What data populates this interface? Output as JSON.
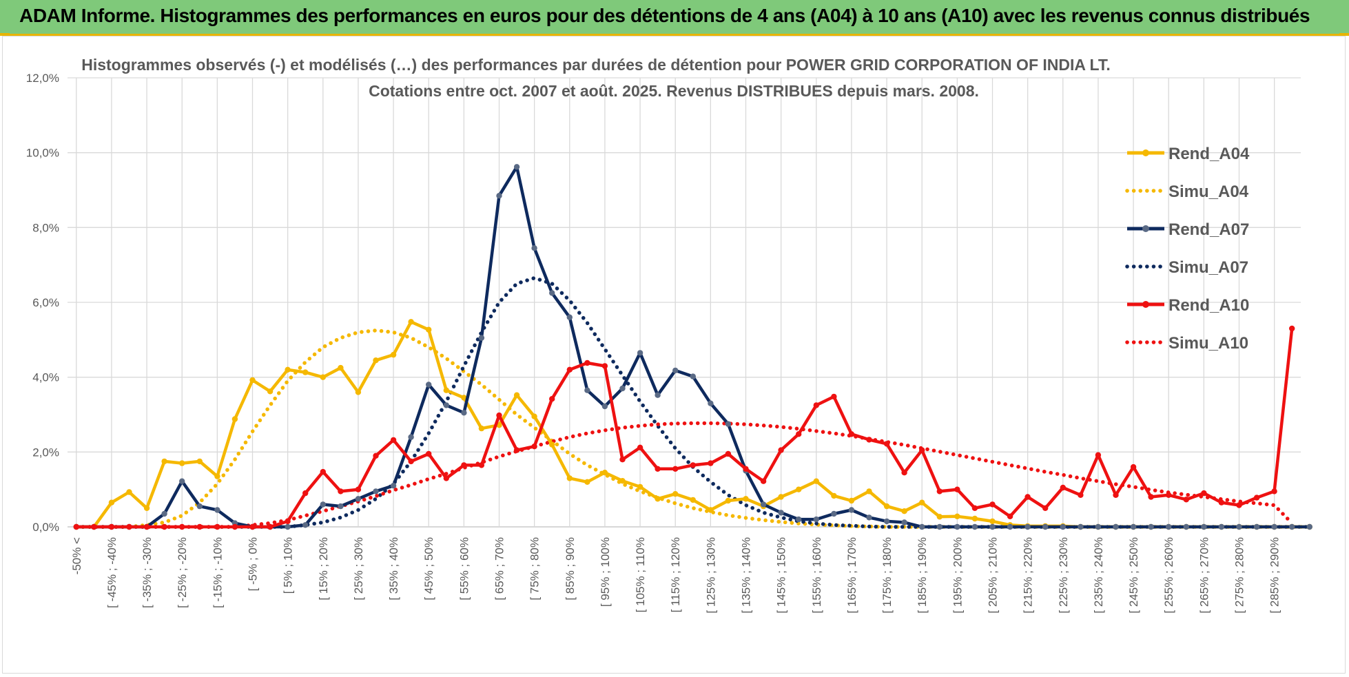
{
  "header": {
    "title": "ADAM Informe. Histogrammes des performances en euros pour des détentions de 4 ans (A04) à 10 ans (A10) avec les revenus connus distribués"
  },
  "chart_data": {
    "type": "line",
    "title": "Histogrammes observés (-) et modélisés (…) des performances par durées de détention pour POWER GRID CORPORATION OF INDIA LT.",
    "subtitle": "Cotations entre oct. 2007 et août. 2025.  Revenus DISTRIBUES depuis mars. 2008.",
    "xlabel": "",
    "ylabel": "",
    "ylim": [
      0,
      12
    ],
    "y_ticks": [
      "0,0%",
      "2,0%",
      "4,0%",
      "6,0%",
      "8,0%",
      "10,0%",
      "12,0%"
    ],
    "grid": true,
    "legend_position": "right",
    "x_tick_labels": [
      "-50% <",
      "[ -45% ; -40%",
      "[ -35% ; -30%",
      "[ -25% ; -20%",
      "[ -15% ; -10%",
      "[ -5% ; 0%",
      "[ 5% ; 10%",
      "[ 15% ; 20%",
      "[ 25% ; 30%",
      "[ 35% ; 40%",
      "[ 45% ; 50%",
      "[ 55% ; 60%",
      "[ 65% ; 70%",
      "[ 75% ; 80%",
      "[ 85% ; 90%",
      "[ 95% ; 100%",
      "[ 105% ; 110%",
      "[ 115% ; 120%",
      "[ 125% ; 130%",
      "[ 135% ; 140%",
      "[ 145% ; 150%",
      "[ 155% ; 160%",
      "[ 165% ; 170%",
      "[ 175% ; 180%",
      "[ 185% ; 190%",
      "[ 195% ; 200%",
      "[ 205% ; 210%",
      "[ 215% ; 220%",
      "[ 225% ; 230%",
      "[ 235% ; 240%",
      "[ 245% ; 250%",
      "[ 255% ; 260%",
      "[ 265% ; 270%",
      "[ 275% ; 280%",
      "[ 285% ; 290%"
    ],
    "x_start_percent": -50,
    "x_step_percent": 5,
    "series": [
      {
        "name": "Rend_A04",
        "style": "solid",
        "color": "#f5b800",
        "values": [
          0,
          0,
          0.65,
          0.93,
          0.5,
          1.75,
          1.7,
          1.75,
          1.35,
          2.88,
          3.92,
          3.62,
          4.2,
          4.13,
          4.0,
          4.25,
          3.6,
          4.45,
          4.6,
          5.48,
          5.27,
          3.65,
          3.45,
          2.63,
          2.72,
          3.52,
          2.95,
          2.2,
          1.3,
          1.2,
          1.45,
          1.23,
          1.07,
          0.75,
          0.88,
          0.72,
          0.45,
          0.7,
          0.75,
          0.55,
          0.8,
          1.0,
          1.22,
          0.83,
          0.7,
          0.95,
          0.55,
          0.42,
          0.65,
          0.27,
          0.28,
          0.22,
          0.15,
          0.05,
          0.02,
          0.02,
          0.02,
          0,
          0,
          0,
          0,
          0,
          0,
          0,
          0,
          0,
          0,
          0,
          0,
          0,
          0
        ]
      },
      {
        "name": "Simu_A04",
        "style": "dotted",
        "color": "#f5b800",
        "values": [
          0,
          0,
          0,
          0,
          0.05,
          0.12,
          0.3,
          0.65,
          1.15,
          1.8,
          2.55,
          3.25,
          3.9,
          4.4,
          4.8,
          5.05,
          5.2,
          5.25,
          5.2,
          5.05,
          4.8,
          4.5,
          4.15,
          3.8,
          3.4,
          3.0,
          2.65,
          2.3,
          1.95,
          1.65,
          1.4,
          1.15,
          0.95,
          0.78,
          0.63,
          0.5,
          0.4,
          0.31,
          0.24,
          0.18,
          0.13,
          0.09,
          0.06,
          0.04,
          0.02,
          0.01,
          0,
          0,
          0,
          0,
          0,
          0,
          0,
          0,
          0,
          0,
          0,
          0,
          0,
          0,
          0,
          0,
          0,
          0,
          0,
          0,
          0,
          0,
          0,
          0,
          0
        ]
      },
      {
        "name": "Rend_A07",
        "style": "solid",
        "color": "#0e2a5e",
        "values": [
          0,
          0,
          0,
          0,
          0,
          0.35,
          1.22,
          0.55,
          0.45,
          0.1,
          0,
          0,
          0,
          0.05,
          0.6,
          0.55,
          0.75,
          0.95,
          1.1,
          2.4,
          3.8,
          3.25,
          3.05,
          5.05,
          8.85,
          9.62,
          7.45,
          6.25,
          5.6,
          3.65,
          3.22,
          3.7,
          4.65,
          3.52,
          4.18,
          4.02,
          3.3,
          2.75,
          1.5,
          0.6,
          0.38,
          0.2,
          0.2,
          0.35,
          0.45,
          0.25,
          0.15,
          0.12,
          0,
          0,
          0,
          0,
          0,
          0,
          0,
          0,
          0,
          0,
          0,
          0,
          0,
          0,
          0,
          0,
          0,
          0,
          0,
          0,
          0,
          0,
          0
        ]
      },
      {
        "name": "Simu_A07",
        "style": "dotted",
        "color": "#0e2a5e",
        "values": [
          0,
          0,
          0,
          0,
          0,
          0,
          0,
          0,
          0,
          0,
          0,
          0,
          0,
          0.05,
          0.12,
          0.25,
          0.45,
          0.75,
          1.15,
          1.75,
          2.5,
          3.35,
          4.3,
          5.2,
          6.0,
          6.5,
          6.65,
          6.5,
          6.05,
          5.45,
          4.75,
          4.05,
          3.35,
          2.7,
          2.1,
          1.6,
          1.2,
          0.85,
          0.58,
          0.38,
          0.25,
          0.15,
          0.09,
          0.05,
          0.03,
          0.01,
          0,
          0,
          0,
          0,
          0,
          0,
          0,
          0,
          0,
          0,
          0,
          0,
          0,
          0,
          0,
          0,
          0,
          0,
          0,
          0,
          0,
          0,
          0,
          0,
          0
        ]
      },
      {
        "name": "Rend_A10",
        "style": "solid",
        "color": "#ee1111",
        "values": [
          0,
          0,
          0,
          0,
          0,
          0,
          0,
          0,
          0,
          0,
          0,
          0,
          0.15,
          0.9,
          1.47,
          0.95,
          1.0,
          1.9,
          2.32,
          1.75,
          1.95,
          1.3,
          1.65,
          1.65,
          2.98,
          2.05,
          2.15,
          3.42,
          4.2,
          4.38,
          4.3,
          1.8,
          2.12,
          1.55,
          1.55,
          1.65,
          1.7,
          1.95,
          1.55,
          1.22,
          2.05,
          2.48,
          3.25,
          3.48,
          2.48,
          2.33,
          2.22,
          1.45,
          2.05,
          0.95,
          1.0,
          0.5,
          0.6,
          0.28,
          0.8,
          0.5,
          1.05,
          0.85,
          1.92,
          0.85,
          1.6,
          0.8,
          0.85,
          0.73,
          0.9,
          0.65,
          0.58,
          0.78,
          0.95,
          5.3
        ]
      },
      {
        "name": "Simu_A10",
        "style": "dotted",
        "color": "#ee1111",
        "values": [
          0,
          0,
          0,
          0,
          0,
          0,
          0,
          0,
          0,
          0,
          0.05,
          0.1,
          0.18,
          0.3,
          0.42,
          0.55,
          0.68,
          0.82,
          0.98,
          1.12,
          1.28,
          1.42,
          1.58,
          1.72,
          1.88,
          2.02,
          2.15,
          2.28,
          2.4,
          2.5,
          2.58,
          2.65,
          2.7,
          2.74,
          2.76,
          2.77,
          2.77,
          2.76,
          2.74,
          2.71,
          2.67,
          2.62,
          2.56,
          2.5,
          2.43,
          2.35,
          2.27,
          2.19,
          2.1,
          2.01,
          1.92,
          1.83,
          1.74,
          1.65,
          1.56,
          1.47,
          1.39,
          1.3,
          1.22,
          1.14,
          1.07,
          0.99,
          0.92,
          0.86,
          0.8,
          0.74,
          0.68,
          0.63,
          0.58,
          0.1
        ]
      }
    ]
  }
}
